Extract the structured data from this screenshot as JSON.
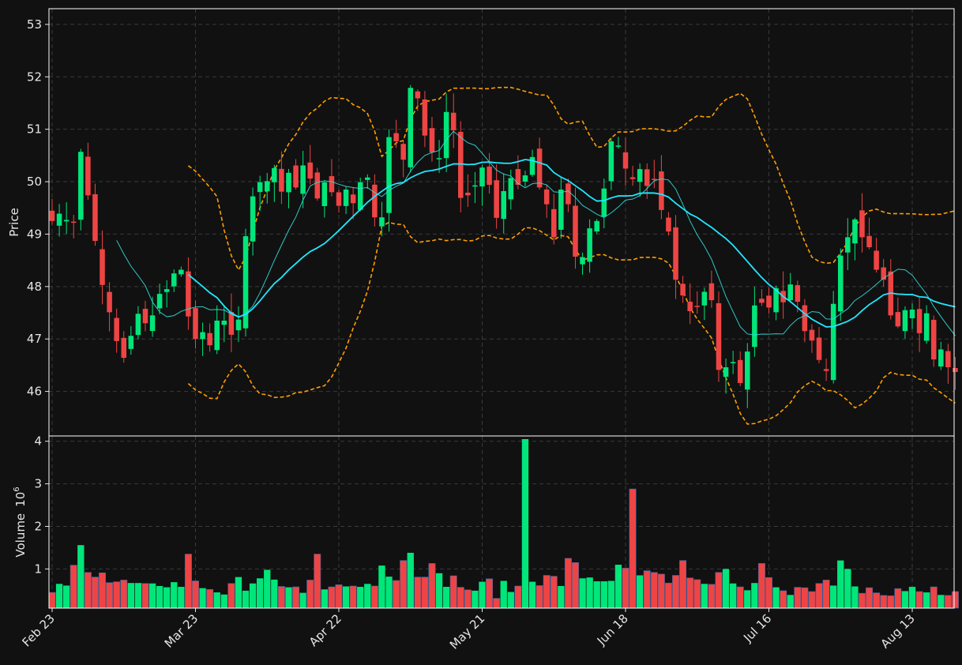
{
  "chart_data": {
    "type": "candlestick",
    "price_panel": {
      "ylabel": "Price",
      "ylim": [
        45.15,
        53.3
      ],
      "yticks": [
        46,
        47,
        48,
        49,
        50,
        51,
        52,
        53
      ],
      "grid": true
    },
    "volume_panel": {
      "ylabel": "Volume",
      "ylabel_exponent": "10",
      "ylabel_power": "6",
      "ylim": [
        0.08,
        4.05
      ],
      "yticks": [
        1,
        2,
        3,
        4
      ],
      "grid": true
    },
    "x_ticks": [
      {
        "index": 0,
        "label": "Feb 23"
      },
      {
        "index": 20,
        "label": "Mar 23"
      },
      {
        "index": 40,
        "label": "Apr 22"
      },
      {
        "index": 60,
        "label": "May 21"
      },
      {
        "index": 80,
        "label": "Jun 18"
      },
      {
        "index": 100,
        "label": "Jul 16"
      },
      {
        "index": 120,
        "label": "Aug 13"
      }
    ],
    "colors": {
      "up": "#00e67a",
      "down": "#ef4444",
      "ma_fast": "#33dddd",
      "ma_slow": "#22e6ff",
      "bollinger": "#ff9e00",
      "background": "#111111",
      "frame": "#ffffff"
    },
    "close": [
      49.25,
      49.39,
      49.27,
      49.22,
      50.57,
      49.74,
      48.87,
      48.03,
      47.51,
      46.96,
      46.64,
      47.06,
      47.48,
      47.3,
      47.45,
      47.86,
      47.95,
      48.25,
      48.32,
      47.43,
      47.0,
      47.13,
      46.88,
      47.35,
      47.35,
      47.08,
      47.37,
      48.96,
      49.72,
      49.99,
      50.01,
      50.26,
      49.81,
      50.17,
      49.89,
      50.31,
      50.06,
      49.68,
      49.99,
      49.8,
      49.54,
      49.85,
      49.59,
      49.99,
      50.08,
      49.32,
      49.32,
      50.85,
      50.77,
      50.42,
      51.79,
      51.59,
      50.88,
      50.56,
      50.45,
      51.33,
      50.98,
      49.69,
      49.74,
      49.93,
      50.27,
      49.94,
      49.31,
      49.82,
      50.07,
      49.94,
      50.12,
      50.47,
      49.89,
      49.57,
      48.94,
      49.85,
      49.57,
      48.57,
      48.56,
      49.11,
      49.25,
      49.87,
      50.77,
      50.69,
      50.25,
      50.05,
      50.24,
      49.92,
      50.04,
      49.46,
      49.05,
      48.13,
      47.83,
      47.53,
      47.61,
      47.9,
      47.74,
      46.41,
      46.46,
      46.56,
      46.16,
      46.76,
      47.64,
      47.69,
      47.6,
      47.97,
      47.7,
      48.04,
      47.71,
      47.15,
      46.97,
      46.6,
      46.39,
      47.67,
      48.59,
      48.94,
      49.28,
      48.94,
      48.75,
      48.32,
      48.13,
      47.45,
      47.24,
      47.55,
      47.56,
      47.11,
      47.49,
      46.61,
      46.8,
      46.46,
      46.37
    ],
    "volume": [
      0.45,
      0.65,
      0.61,
      1.09,
      1.56,
      0.92,
      0.81,
      0.91,
      0.68,
      0.7,
      0.74,
      0.67,
      0.67,
      0.66,
      0.66,
      0.6,
      0.57,
      0.69,
      0.58,
      1.35,
      0.72,
      0.55,
      0.52,
      0.45,
      0.4,
      0.66,
      0.81,
      0.49,
      0.66,
      0.78,
      0.98,
      0.75,
      0.59,
      0.57,
      0.58,
      0.44,
      0.74,
      1.35,
      0.52,
      0.58,
      0.63,
      0.59,
      0.6,
      0.58,
      0.65,
      0.6,
      1.08,
      0.82,
      0.73,
      1.2,
      1.38,
      0.81,
      0.81,
      1.13,
      0.9,
      0.58,
      0.84,
      0.57,
      0.51,
      0.49,
      0.7,
      0.77,
      0.31,
      0.72,
      0.46,
      0.6,
      4.05,
      0.7,
      0.61,
      0.85,
      0.83,
      0.6,
      1.25,
      1.15,
      0.78,
      0.8,
      0.71,
      0.71,
      0.72,
      1.1,
      1.02,
      2.88,
      0.85,
      0.96,
      0.92,
      0.88,
      0.67,
      0.85,
      1.2,
      0.79,
      0.75,
      0.65,
      0.64,
      0.92,
      1.0,
      0.66,
      0.58,
      0.5,
      0.67,
      1.13,
      0.8,
      0.57,
      0.49,
      0.39,
      0.57,
      0.56,
      0.47,
      0.66,
      0.74,
      0.61,
      1.2,
      1.0,
      0.59,
      0.43,
      0.56,
      0.44,
      0.38,
      0.37,
      0.54,
      0.48,
      0.58,
      0.47,
      0.45,
      0.58,
      0.39,
      0.38,
      0.47
    ],
    "candles_shown": 128
  }
}
